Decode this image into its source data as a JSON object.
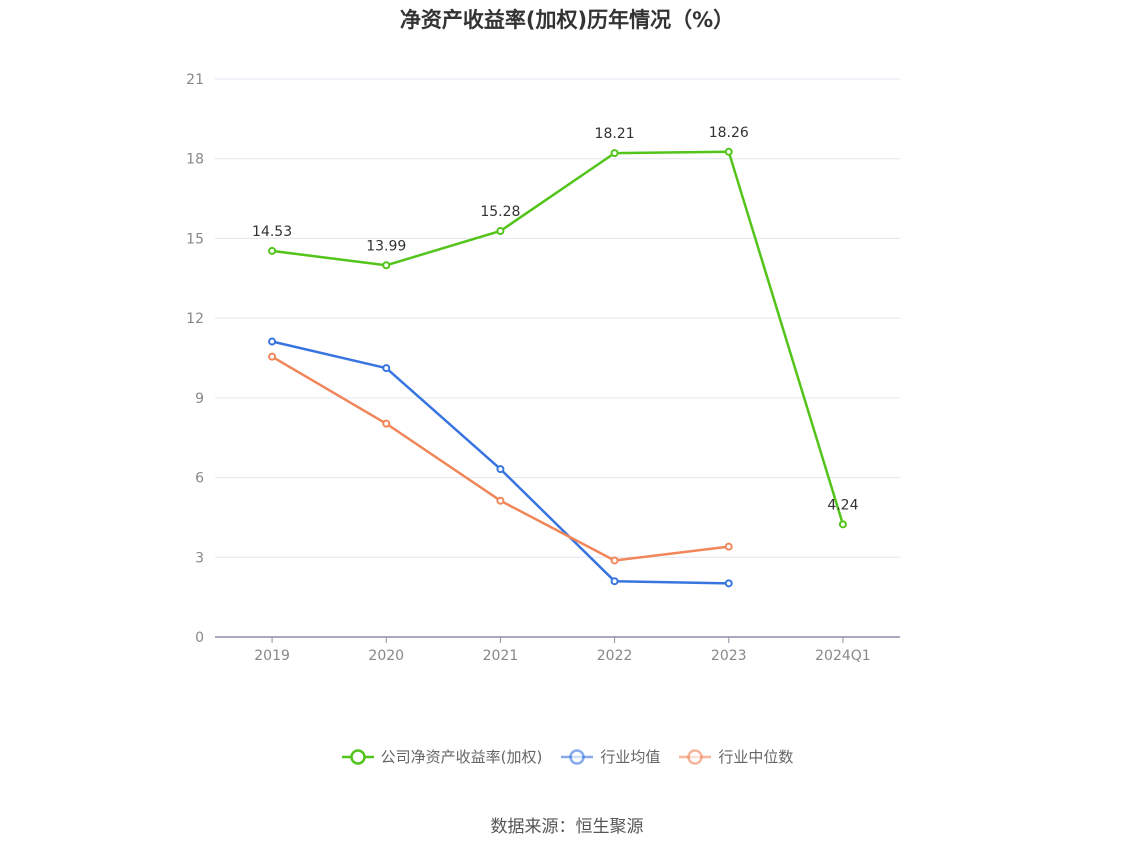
{
  "title": "净资产收益率(加权)历年情况（%）",
  "source": "数据来源：恒生聚源",
  "chart_data": {
    "type": "line",
    "title": "净资产收益率(加权)历年情况（%）",
    "categories": [
      "2019",
      "2020",
      "2021",
      "2022",
      "2023",
      "2024Q1"
    ],
    "ylim": [
      0,
      21
    ],
    "yticks": [
      0,
      3,
      6,
      9,
      12,
      15,
      18,
      21
    ],
    "grid": true,
    "legend_position": "bottom",
    "series": [
      {
        "name": "公司净资产收益率(加权)",
        "color": "#52c41a",
        "values": [
          14.53,
          13.99,
          15.28,
          18.21,
          18.26,
          4.24
        ],
        "labels": [
          "14.53",
          "13.99",
          "15.28",
          "18.21",
          "18.26",
          "4.24"
        ]
      },
      {
        "name": "行业均值",
        "color": "#3875e0",
        "values": [
          11.12,
          10.12,
          6.32,
          2.1,
          2.02,
          null
        ]
      },
      {
        "name": "行业中位数",
        "color": "#f0865a",
        "values": [
          10.55,
          8.03,
          5.13,
          2.88,
          3.4,
          null
        ]
      }
    ]
  }
}
